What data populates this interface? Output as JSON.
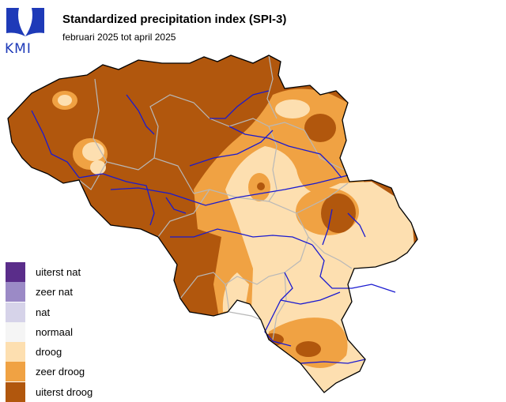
{
  "header": {
    "logo_text": "KMI",
    "title": "Standardized precipitation index (SPI-3)",
    "subtitle": "februari 2025 tot april 2025"
  },
  "colors": {
    "uiterst_nat": "#5a2d8a",
    "zeer_nat": "#9b8ac6",
    "nat": "#d6d3e9",
    "normaal": "#f5f5f5",
    "droog": "#fddfb0",
    "zeer_droog": "#f0a243",
    "uiterst_droog": "#b1570d",
    "rivers": "#1a1ad0",
    "borders": "#b8b8b8",
    "outline": "#000000"
  },
  "legend": {
    "items": [
      {
        "label": "uiterst nat",
        "color": "#5a2d8a"
      },
      {
        "label": "zeer nat",
        "color": "#9b8ac6"
      },
      {
        "label": "nat",
        "color": "#d6d3e9"
      },
      {
        "label": "normaal",
        "color": "#f5f5f5"
      },
      {
        "label": "droog",
        "color": "#fddfb0"
      },
      {
        "label": "zeer droog",
        "color": "#f0a243"
      },
      {
        "label": "uiterst droog",
        "color": "#b1570d"
      }
    ]
  }
}
